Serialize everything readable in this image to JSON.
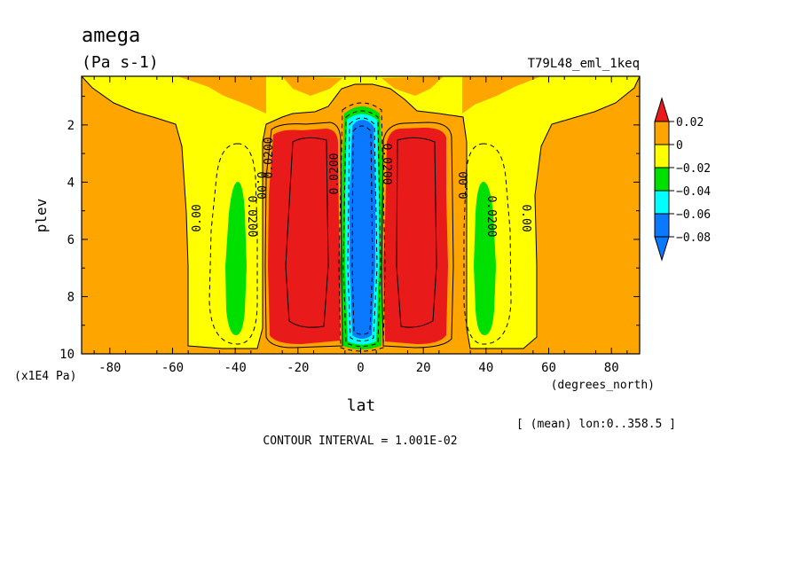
{
  "header": {
    "title": "amega",
    "units": "(Pa s-1)",
    "dataset": "T79L48_eml_1keq"
  },
  "footer": {
    "contour_interval": "CONTOUR INTERVAL = 1.001E-02",
    "averaging_note": "[ (mean) lon:0..358.5 ]"
  },
  "colors": {
    "above_0_02": "#e81a1a",
    "band_0_to_0_02": "#ffa500",
    "band_m0_02_to_0": "#ffff00",
    "band_m0_04_to_m0_02": "#00e000",
    "band_m0_06_to_m0_04": "#00ffff",
    "band_m0_08_to_m0_06": "#0a78ff"
  },
  "chart_data": {
    "type": "heatmap",
    "variable": "amega",
    "units": "Pa s-1",
    "xlabel": "lat",
    "xunits": "(degrees_north)",
    "ylabel": "plev",
    "yunits": "(x1E4 Pa)",
    "x_ticks": [
      "-80",
      "-60",
      "-40",
      "-20",
      "0",
      "20",
      "40",
      "60",
      "80"
    ],
    "y_ticks": [
      "2",
      "4",
      "6",
      "8",
      "10"
    ],
    "xlim": [
      -89,
      89
    ],
    "ylim": [
      10,
      0.3
    ],
    "y_inverted": true,
    "contour_interval": 0.01001,
    "colorbar": {
      "levels": [
        "0.02",
        "0",
        "-0.02",
        "-0.04",
        "-0.06",
        "-0.08"
      ],
      "colors": [
        "#e81a1a",
        "#ffa500",
        "#ffff00",
        "#00e000",
        "#00ffff",
        "#0a78ff"
      ],
      "arrow_top_color": "#e81a1a",
      "arrow_bottom_color": "#0a78ff"
    },
    "contour_labels": [
      {
        "text": "0.00",
        "lat": -53,
        "plev": 6.0
      },
      {
        "text": "0.00",
        "lat": -33,
        "plev": 4.1
      },
      {
        "text": "0.00",
        "lat": 34,
        "plev": 4.1
      },
      {
        "text": "0.00",
        "lat": 53,
        "plev": 6.0
      },
      {
        "text": "0.0200",
        "lat": -28,
        "plev": 2.6
      },
      {
        "text": "0.0200",
        "lat": -38,
        "plev": 5.8
      },
      {
        "text": "0.0200",
        "lat": 41,
        "plev": 5.8
      },
      {
        "text": "0.0200",
        "lat": 8,
        "plev": 3.1
      },
      {
        "text": "0.0200",
        "lat": -8,
        "plev": 3.6
      }
    ],
    "regions": [
      {
        "value_band": "0 to 0.02",
        "desc": "background descent in subtropics and high latitudes",
        "lat_range": [
          -89,
          89
        ],
        "plev_range": [
          0.3,
          10
        ]
      },
      {
        "value_band": "-0.02 to 0",
        "desc": "weak ascent columns",
        "lat_range": [
          -57,
          -32
        ],
        "plev_range": [
          0.3,
          9.9
        ]
      },
      {
        "value_band": "-0.02 to 0",
        "desc": "weak ascent columns",
        "lat_range": [
          32,
          57
        ],
        "plev_range": [
          0.3,
          9.9
        ]
      },
      {
        "value_band": "-0.04 to -0.02",
        "desc": "midlatitude ascent core",
        "lat_range": [
          -44,
          -37
        ],
        "plev_range": [
          3.8,
          9.2
        ]
      },
      {
        "value_band": "-0.04 to -0.02",
        "desc": "midlatitude ascent core",
        "lat_range": [
          37,
          44
        ],
        "plev_range": [
          3.8,
          9.2
        ]
      },
      {
        "value_band": "> 0.02",
        "desc": "subtropical descent",
        "lat_range": [
          -29,
          -7
        ],
        "plev_range": [
          1.8,
          9.7
        ]
      },
      {
        "value_band": "> 0.02",
        "desc": "subtropical descent",
        "lat_range": [
          7,
          29
        ],
        "plev_range": [
          1.8,
          9.7
        ]
      },
      {
        "value_band": "< -0.08",
        "desc": "equatorial ITCZ ascent",
        "lat_range": [
          -3,
          3
        ],
        "plev_range": [
          1.5,
          9.6
        ]
      }
    ]
  }
}
